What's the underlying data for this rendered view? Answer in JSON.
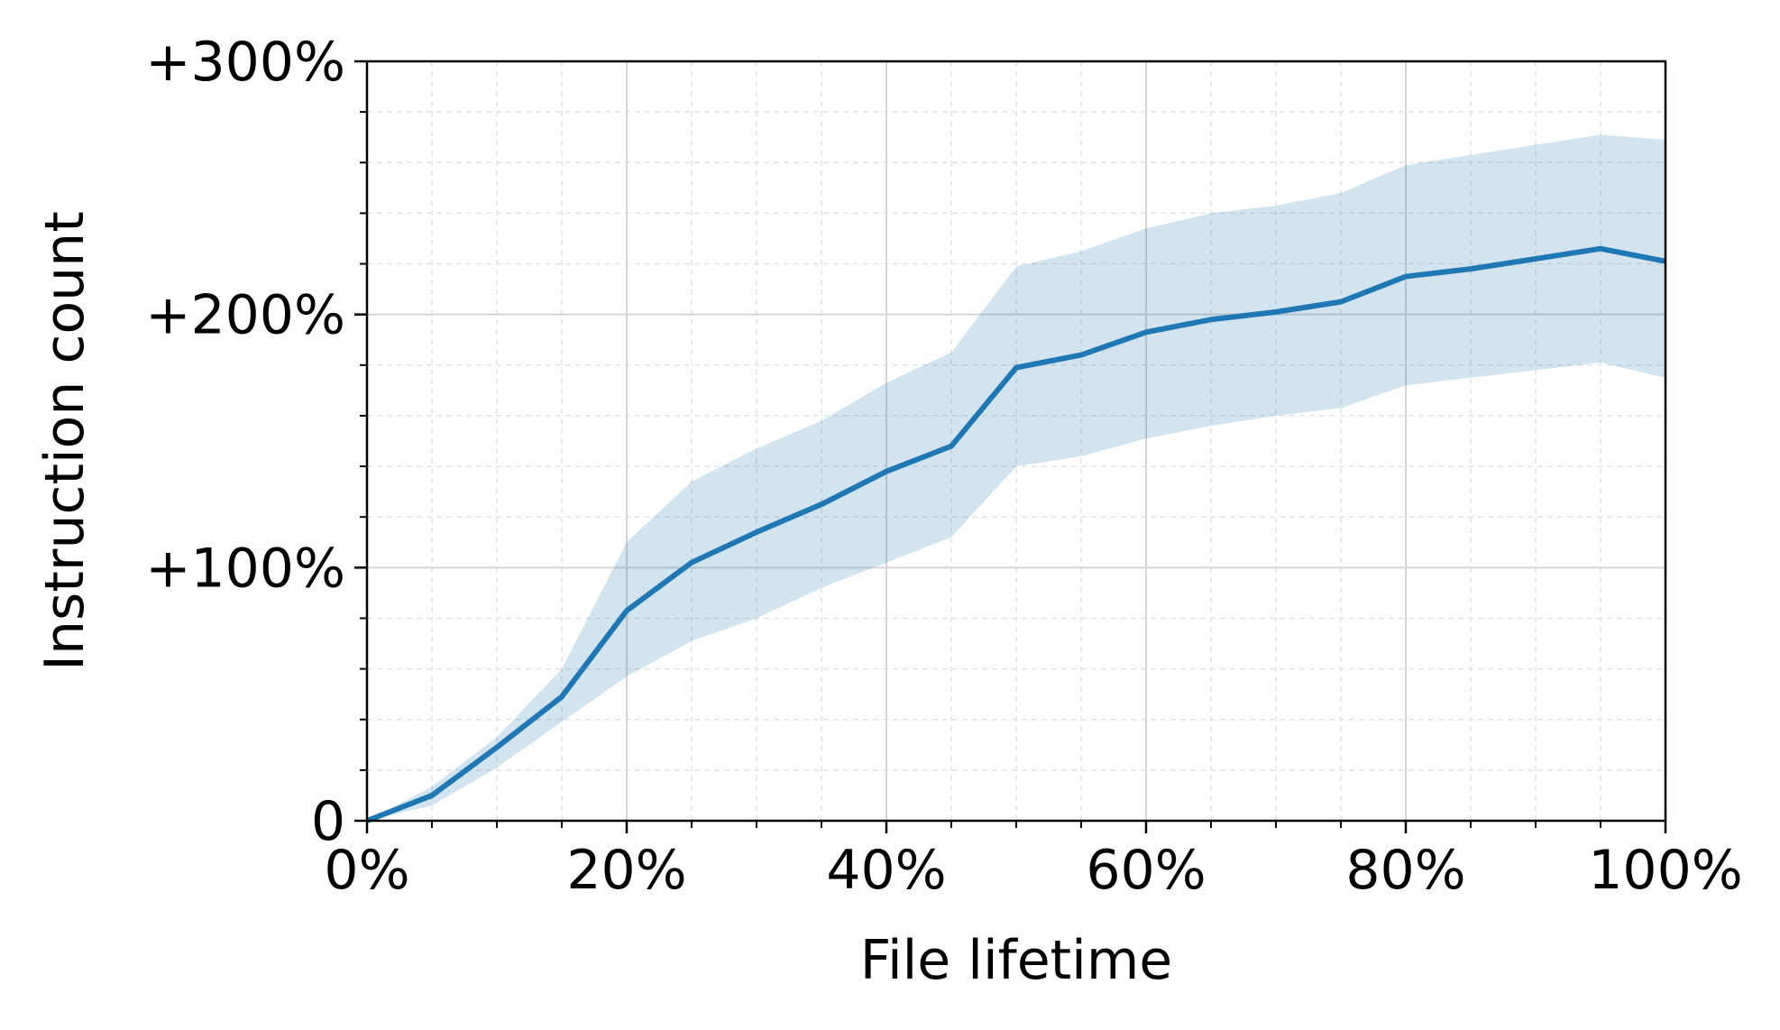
{
  "chart_data": {
    "type": "line",
    "x_label": "File lifetime",
    "y_label": "Instruction count",
    "x": [
      0,
      5,
      10,
      15,
      20,
      25,
      30,
      35,
      40,
      45,
      50,
      55,
      60,
      65,
      70,
      75,
      80,
      85,
      90,
      95,
      100
    ],
    "series": [
      {
        "color": "#1f77b4",
        "values": [
          0,
          10,
          29,
          49,
          83,
          102,
          114,
          125,
          138,
          148,
          179,
          184,
          193,
          198,
          201,
          205,
          215,
          218,
          222,
          226,
          221
        ],
        "upper": [
          0,
          13.5,
          33,
          60,
          110,
          134,
          147,
          158,
          173,
          185,
          219,
          225,
          234,
          240,
          243,
          248,
          259,
          263,
          267,
          271,
          269
        ],
        "lower": [
          0,
          6,
          21,
          39,
          57,
          71,
          80,
          92,
          102,
          112,
          140,
          144,
          151,
          156,
          160,
          163,
          172,
          175,
          178,
          181,
          175
        ],
        "band_opacity": 0.2
      }
    ],
    "xlim": [
      0,
      100
    ],
    "ylim": [
      0,
      300
    ],
    "xticks": [
      {
        "value": 0,
        "label": "0%"
      },
      {
        "value": 20,
        "label": "20%"
      },
      {
        "value": 40,
        "label": "40%"
      },
      {
        "value": 60,
        "label": "60%"
      },
      {
        "value": 80,
        "label": "80%"
      },
      {
        "value": 100,
        "label": "100%"
      }
    ],
    "yticks": [
      0,
      {
        "value": 100,
        "label": "+100%"
      },
      {
        "value": 200,
        "label": "+200%"
      },
      {
        "value": 300,
        "label": "+300%"
      }
    ],
    "x_minor_ticks": [
      5,
      10,
      15,
      25,
      30,
      35,
      45,
      50,
      55,
      65,
      70,
      75,
      85,
      90,
      95
    ],
    "y_minor_ticks": [
      20,
      40,
      60,
      80,
      120,
      140,
      160,
      180,
      220,
      240,
      260,
      280
    ],
    "grid": true
  }
}
